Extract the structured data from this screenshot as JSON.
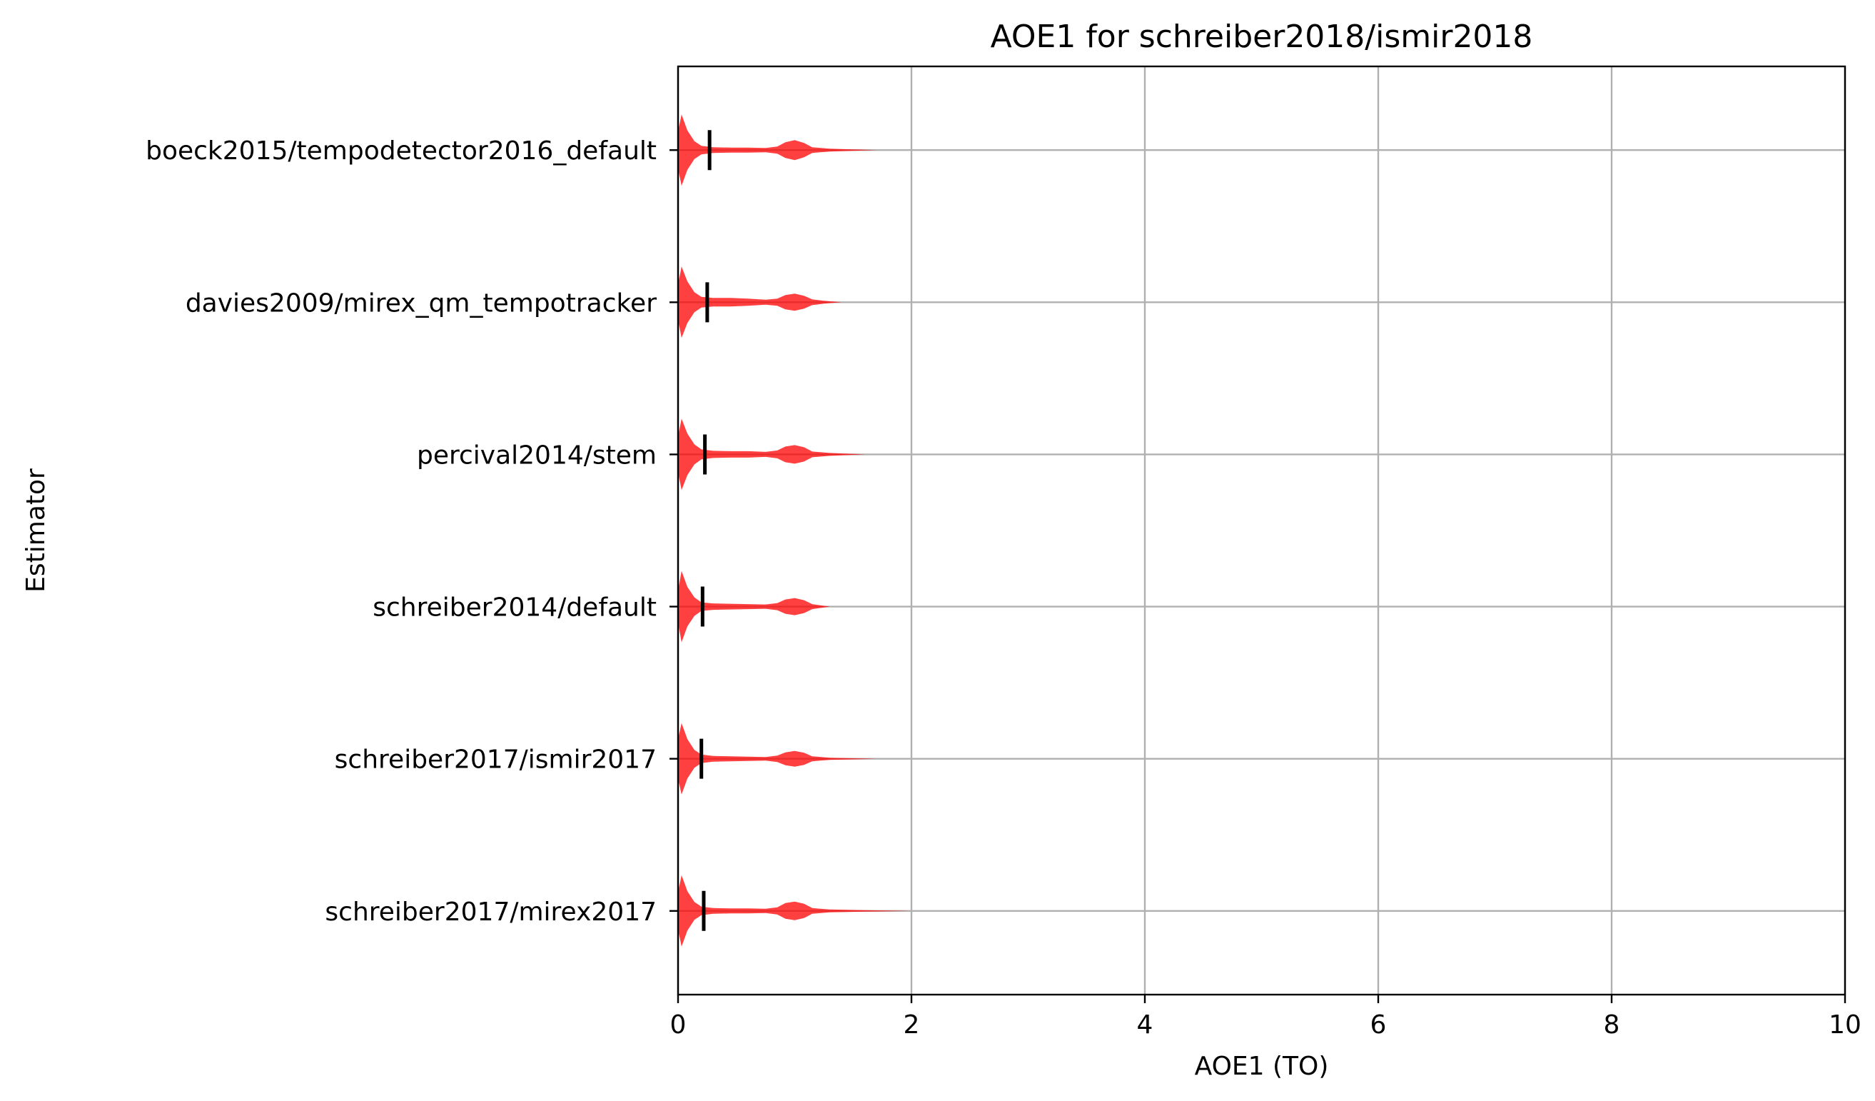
{
  "chart_data": {
    "type": "violin",
    "orientation": "horizontal",
    "title": "AOE1 for schreiber2018/ismir2018",
    "xlabel": "AOE1 (TO)",
    "ylabel": "Estimator",
    "xlim": [
      0,
      10
    ],
    "xticks": [
      0,
      2,
      4,
      6,
      8,
      10
    ],
    "grid": true,
    "color": "#ff0000",
    "series": [
      {
        "name": "boeck2015/tempodetector2016_default",
        "mean": 0.27,
        "max": 1.7,
        "density": [
          [
            0,
            0.52
          ],
          [
            0.03,
            1.0
          ],
          [
            0.08,
            0.55
          ],
          [
            0.14,
            0.25
          ],
          [
            0.2,
            0.12
          ],
          [
            0.3,
            0.08
          ],
          [
            0.45,
            0.07
          ],
          [
            0.6,
            0.07
          ],
          [
            0.75,
            0.06
          ],
          [
            0.85,
            0.1
          ],
          [
            0.92,
            0.22
          ],
          [
            1.0,
            0.28
          ],
          [
            1.08,
            0.2
          ],
          [
            1.15,
            0.08
          ],
          [
            1.3,
            0.04
          ],
          [
            1.5,
            0.02
          ],
          [
            1.7,
            0.0
          ]
        ]
      },
      {
        "name": "davies2009/mirex_qm_tempotracker",
        "mean": 0.25,
        "max": 1.4,
        "density": [
          [
            0,
            0.5
          ],
          [
            0.03,
            1.0
          ],
          [
            0.08,
            0.58
          ],
          [
            0.14,
            0.28
          ],
          [
            0.2,
            0.15
          ],
          [
            0.3,
            0.12
          ],
          [
            0.45,
            0.12
          ],
          [
            0.6,
            0.1
          ],
          [
            0.75,
            0.07
          ],
          [
            0.85,
            0.1
          ],
          [
            0.92,
            0.2
          ],
          [
            1.0,
            0.24
          ],
          [
            1.08,
            0.18
          ],
          [
            1.15,
            0.08
          ],
          [
            1.25,
            0.04
          ],
          [
            1.4,
            0.0
          ]
        ]
      },
      {
        "name": "percival2014/stem",
        "mean": 0.23,
        "max": 1.6,
        "density": [
          [
            0,
            0.5
          ],
          [
            0.03,
            1.0
          ],
          [
            0.08,
            0.58
          ],
          [
            0.14,
            0.28
          ],
          [
            0.2,
            0.14
          ],
          [
            0.3,
            0.1
          ],
          [
            0.45,
            0.09
          ],
          [
            0.6,
            0.09
          ],
          [
            0.75,
            0.07
          ],
          [
            0.85,
            0.11
          ],
          [
            0.92,
            0.22
          ],
          [
            1.0,
            0.26
          ],
          [
            1.08,
            0.2
          ],
          [
            1.15,
            0.08
          ],
          [
            1.3,
            0.04
          ],
          [
            1.6,
            0.0
          ]
        ]
      },
      {
        "name": "schreiber2014/default",
        "mean": 0.21,
        "max": 1.3,
        "density": [
          [
            0,
            0.45
          ],
          [
            0.03,
            1.0
          ],
          [
            0.08,
            0.55
          ],
          [
            0.14,
            0.26
          ],
          [
            0.2,
            0.12
          ],
          [
            0.3,
            0.09
          ],
          [
            0.45,
            0.08
          ],
          [
            0.6,
            0.07
          ],
          [
            0.75,
            0.06
          ],
          [
            0.85,
            0.1
          ],
          [
            0.92,
            0.2
          ],
          [
            1.0,
            0.24
          ],
          [
            1.08,
            0.18
          ],
          [
            1.15,
            0.07
          ],
          [
            1.3,
            0.0
          ]
        ]
      },
      {
        "name": "schreiber2017/ismir2017",
        "mean": 0.2,
        "max": 1.7,
        "density": [
          [
            0,
            0.55
          ],
          [
            0.03,
            1.0
          ],
          [
            0.08,
            0.55
          ],
          [
            0.14,
            0.25
          ],
          [
            0.2,
            0.12
          ],
          [
            0.3,
            0.08
          ],
          [
            0.45,
            0.07
          ],
          [
            0.6,
            0.06
          ],
          [
            0.75,
            0.05
          ],
          [
            0.85,
            0.09
          ],
          [
            0.92,
            0.18
          ],
          [
            1.0,
            0.22
          ],
          [
            1.08,
            0.17
          ],
          [
            1.15,
            0.07
          ],
          [
            1.3,
            0.03
          ],
          [
            1.7,
            0.0
          ]
        ]
      },
      {
        "name": "schreiber2017/mirex2017",
        "mean": 0.22,
        "max": 2.0,
        "density": [
          [
            0,
            0.52
          ],
          [
            0.03,
            1.0
          ],
          [
            0.08,
            0.55
          ],
          [
            0.14,
            0.25
          ],
          [
            0.2,
            0.12
          ],
          [
            0.3,
            0.08
          ],
          [
            0.45,
            0.07
          ],
          [
            0.6,
            0.07
          ],
          [
            0.75,
            0.06
          ],
          [
            0.85,
            0.1
          ],
          [
            0.92,
            0.22
          ],
          [
            1.0,
            0.26
          ],
          [
            1.08,
            0.2
          ],
          [
            1.15,
            0.08
          ],
          [
            1.3,
            0.04
          ],
          [
            1.6,
            0.02
          ],
          [
            2.0,
            0.0
          ]
        ]
      }
    ]
  }
}
